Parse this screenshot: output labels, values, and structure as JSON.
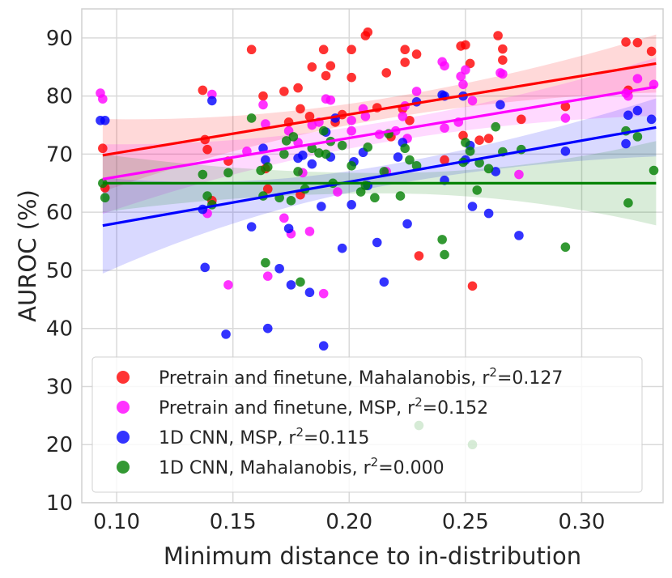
{
  "chart_data": {
    "type": "scatter",
    "title": "",
    "xlabel": "Minimum distance to in-distribution",
    "ylabel": "AUROC (%)",
    "xlim": [
      0.085,
      0.335
    ],
    "ylim": [
      10,
      95
    ],
    "xticks": [
      0.1,
      0.15,
      0.2,
      0.25,
      0.3
    ],
    "xtick_labels": [
      "0.10",
      "0.15",
      "0.20",
      "0.25",
      "0.30"
    ],
    "yticks": [
      10,
      20,
      30,
      40,
      50,
      60,
      70,
      80,
      90
    ],
    "ytick_labels": [
      "10",
      "20",
      "30",
      "40",
      "50",
      "60",
      "70",
      "80",
      "90"
    ],
    "grid": true,
    "legend_position": "bottom",
    "series": [
      {
        "name": "Pretrain and finetune, Mahalanobis",
        "label": "Pretrain and finetune, Mahalanobis, r",
        "r2_label": "=0.127",
        "color": "#ff0000",
        "fit": {
          "x": [
            0.094,
            0.332
          ],
          "y": [
            69.8,
            85.6
          ]
        },
        "band": {
          "x0": 0.094,
          "x1": 0.332,
          "lo0": 63.5,
          "hi0": 76.0,
          "lo1": 80.5,
          "hi1": 90.5,
          "mid": 0.215
        },
        "points": [
          [
            0.094,
            71.0
          ],
          [
            0.095,
            64.2
          ],
          [
            0.137,
            81.0
          ],
          [
            0.138,
            72.5
          ],
          [
            0.139,
            70.8
          ],
          [
            0.141,
            62.0
          ],
          [
            0.148,
            68.8
          ],
          [
            0.158,
            88.0
          ],
          [
            0.163,
            80.0
          ],
          [
            0.164,
            67.5
          ],
          [
            0.165,
            64.0
          ],
          [
            0.172,
            80.8
          ],
          [
            0.174,
            75.5
          ],
          [
            0.178,
            81.4
          ],
          [
            0.179,
            77.8
          ],
          [
            0.179,
            63.0
          ],
          [
            0.183,
            76.5
          ],
          [
            0.184,
            85.0
          ],
          [
            0.189,
            88.0
          ],
          [
            0.19,
            83.5
          ],
          [
            0.192,
            85.2
          ],
          [
            0.194,
            75.5
          ],
          [
            0.197,
            76.8
          ],
          [
            0.201,
            88.0
          ],
          [
            0.201,
            83.2
          ],
          [
            0.207,
            90.4
          ],
          [
            0.208,
            91.0
          ],
          [
            0.212,
            78.0
          ],
          [
            0.216,
            84.0
          ],
          [
            0.218,
            73.0
          ],
          [
            0.223,
            77.8
          ],
          [
            0.224,
            85.8
          ],
          [
            0.224,
            88.0
          ],
          [
            0.226,
            75.8
          ],
          [
            0.229,
            87.2
          ],
          [
            0.23,
            52.5
          ],
          [
            0.241,
            69.0
          ],
          [
            0.248,
            88.6
          ],
          [
            0.249,
            73.2
          ],
          [
            0.25,
            88.8
          ],
          [
            0.252,
            85.6
          ],
          [
            0.253,
            47.3
          ],
          [
            0.256,
            72.4
          ],
          [
            0.26,
            72.7
          ],
          [
            0.264,
            90.4
          ],
          [
            0.266,
            88.1
          ],
          [
            0.266,
            86.2
          ],
          [
            0.274,
            76.0
          ],
          [
            0.293,
            78.2
          ],
          [
            0.319,
            89.3
          ],
          [
            0.32,
            81.0
          ],
          [
            0.324,
            89.2
          ],
          [
            0.33,
            87.7
          ]
        ]
      },
      {
        "name": "Pretrain and finetune, MSP",
        "label": "Pretrain and finetune, MSP, r",
        "r2_label": "=0.152",
        "color": "#ff00ff",
        "fit": {
          "x": [
            0.094,
            0.332
          ],
          "y": [
            65.7,
            81.6
          ]
        },
        "band": {
          "x0": 0.094,
          "x1": 0.332,
          "lo0": 60.0,
          "hi0": 72.0,
          "lo1": 76.0,
          "hi1": 86.0,
          "mid": 0.215
        },
        "points": [
          [
            0.093,
            80.5
          ],
          [
            0.094,
            79.5
          ],
          [
            0.139,
            59.8
          ],
          [
            0.141,
            80.3
          ],
          [
            0.148,
            47.5
          ],
          [
            0.156,
            70.5
          ],
          [
            0.163,
            78.5
          ],
          [
            0.164,
            75.2
          ],
          [
            0.165,
            49.0
          ],
          [
            0.172,
            59.0
          ],
          [
            0.174,
            74.0
          ],
          [
            0.175,
            56.3
          ],
          [
            0.178,
            72.0
          ],
          [
            0.18,
            66.8
          ],
          [
            0.183,
            56.7
          ],
          [
            0.184,
            75.0
          ],
          [
            0.187,
            75.5
          ],
          [
            0.189,
            46.0
          ],
          [
            0.19,
            79.5
          ],
          [
            0.192,
            79.3
          ],
          [
            0.195,
            63.5
          ],
          [
            0.201,
            74.0
          ],
          [
            0.201,
            75.8
          ],
          [
            0.206,
            77.8
          ],
          [
            0.207,
            76.5
          ],
          [
            0.213,
            73.4
          ],
          [
            0.216,
            67.0
          ],
          [
            0.22,
            74.0
          ],
          [
            0.223,
            76.5
          ],
          [
            0.224,
            78.3
          ],
          [
            0.225,
            72.7
          ],
          [
            0.229,
            80.8
          ],
          [
            0.24,
            85.9
          ],
          [
            0.241,
            85.2
          ],
          [
            0.241,
            74.5
          ],
          [
            0.247,
            75.5
          ],
          [
            0.248,
            83.4
          ],
          [
            0.249,
            82.0
          ],
          [
            0.25,
            84.5
          ],
          [
            0.253,
            79.2
          ],
          [
            0.265,
            84.0
          ],
          [
            0.266,
            83.8
          ],
          [
            0.273,
            66.5
          ],
          [
            0.293,
            76.2
          ],
          [
            0.319,
            80.5
          ],
          [
            0.324,
            83.0
          ],
          [
            0.331,
            82.0
          ],
          [
            0.32,
            80.0
          ]
        ]
      },
      {
        "name": "1D CNN, MSP",
        "label": "1D CNN, MSP, r",
        "r2_label": "=0.115",
        "color": "#0000ff",
        "fit": {
          "x": [
            0.094,
            0.332
          ],
          "y": [
            57.7,
            74.6
          ]
        },
        "band": {
          "x0": 0.094,
          "x1": 0.332,
          "lo0": 49.5,
          "hi0": 66.0,
          "lo1": 69.5,
          "hi1": 79.5,
          "mid": 0.215
        },
        "points": [
          [
            0.093,
            75.8
          ],
          [
            0.095,
            75.8
          ],
          [
            0.137,
            60.5
          ],
          [
            0.138,
            50.5
          ],
          [
            0.141,
            79.2
          ],
          [
            0.147,
            39.0
          ],
          [
            0.158,
            57.5
          ],
          [
            0.163,
            71.0
          ],
          [
            0.164,
            69.0
          ],
          [
            0.165,
            40.0
          ],
          [
            0.17,
            50.3
          ],
          [
            0.174,
            57.2
          ],
          [
            0.175,
            47.5
          ],
          [
            0.178,
            69.3
          ],
          [
            0.18,
            69.8
          ],
          [
            0.183,
            46.2
          ],
          [
            0.184,
            68.3
          ],
          [
            0.188,
            61.0
          ],
          [
            0.189,
            37.0
          ],
          [
            0.19,
            73.8
          ],
          [
            0.192,
            69.5
          ],
          [
            0.194,
            76.2
          ],
          [
            0.197,
            53.8
          ],
          [
            0.201,
            61.3
          ],
          [
            0.202,
            68.7
          ],
          [
            0.206,
            70.3
          ],
          [
            0.208,
            64.6
          ],
          [
            0.212,
            54.8
          ],
          [
            0.215,
            48.0
          ],
          [
            0.221,
            69.5
          ],
          [
            0.223,
            72.0
          ],
          [
            0.225,
            58.0
          ],
          [
            0.229,
            79.0
          ],
          [
            0.24,
            80.2
          ],
          [
            0.241,
            65.5
          ],
          [
            0.241,
            80.0
          ],
          [
            0.249,
            80.0
          ],
          [
            0.25,
            69.0
          ],
          [
            0.252,
            71.5
          ],
          [
            0.253,
            61.0
          ],
          [
            0.26,
            59.8
          ],
          [
            0.263,
            67.0
          ],
          [
            0.265,
            78.5
          ],
          [
            0.273,
            56.0
          ],
          [
            0.293,
            70.5
          ],
          [
            0.319,
            71.8
          ],
          [
            0.32,
            76.7
          ],
          [
            0.324,
            77.5
          ],
          [
            0.33,
            76.0
          ]
        ]
      },
      {
        "name": "1D CNN, Mahalanobis",
        "label": "1D CNN, Mahalanobis, r",
        "r2_label": "=0.000",
        "color": "#008000",
        "fit": {
          "x": [
            0.094,
            0.332
          ],
          "y": [
            65.0,
            65.0
          ]
        },
        "band": {
          "x0": 0.094,
          "x1": 0.332,
          "lo0": 60.5,
          "hi0": 70.5,
          "lo1": 57.5,
          "hi1": 72.0,
          "mid": 0.215
        },
        "points": [
          [
            0.094,
            65.0
          ],
          [
            0.095,
            62.5
          ],
          [
            0.137,
            66.5
          ],
          [
            0.139,
            62.8
          ],
          [
            0.141,
            61.3
          ],
          [
            0.148,
            66.8
          ],
          [
            0.158,
            76.2
          ],
          [
            0.162,
            67.2
          ],
          [
            0.163,
            62.8
          ],
          [
            0.164,
            51.3
          ],
          [
            0.165,
            67.8
          ],
          [
            0.17,
            62.5
          ],
          [
            0.172,
            70.0
          ],
          [
            0.173,
            72.3
          ],
          [
            0.175,
            62.0
          ],
          [
            0.176,
            73.0
          ],
          [
            0.178,
            67.0
          ],
          [
            0.179,
            48.0
          ],
          [
            0.181,
            64.0
          ],
          [
            0.184,
            71.0
          ],
          [
            0.187,
            70.2
          ],
          [
            0.189,
            74.0
          ],
          [
            0.19,
            70.0
          ],
          [
            0.192,
            72.2
          ],
          [
            0.193,
            65.0
          ],
          [
            0.197,
            71.5
          ],
          [
            0.201,
            68.0
          ],
          [
            0.205,
            63.5
          ],
          [
            0.207,
            64.6
          ],
          [
            0.208,
            71.2
          ],
          [
            0.211,
            62.5
          ],
          [
            0.215,
            67.0
          ],
          [
            0.217,
            73.5
          ],
          [
            0.222,
            62.8
          ],
          [
            0.224,
            71.0
          ],
          [
            0.226,
            69.0
          ],
          [
            0.229,
            68.0
          ],
          [
            0.23,
            23.3
          ],
          [
            0.24,
            55.3
          ],
          [
            0.241,
            52.7
          ],
          [
            0.249,
            68.6
          ],
          [
            0.25,
            72.0
          ],
          [
            0.252,
            70.5
          ],
          [
            0.253,
            20.0
          ],
          [
            0.255,
            63.8
          ],
          [
            0.256,
            68.5
          ],
          [
            0.26,
            67.5
          ],
          [
            0.263,
            74.7
          ],
          [
            0.266,
            70.4
          ],
          [
            0.274,
            70.8
          ],
          [
            0.293,
            54.0
          ],
          [
            0.319,
            74.0
          ],
          [
            0.32,
            61.6
          ],
          [
            0.324,
            73.0
          ],
          [
            0.331,
            67.2
          ]
        ]
      }
    ]
  }
}
